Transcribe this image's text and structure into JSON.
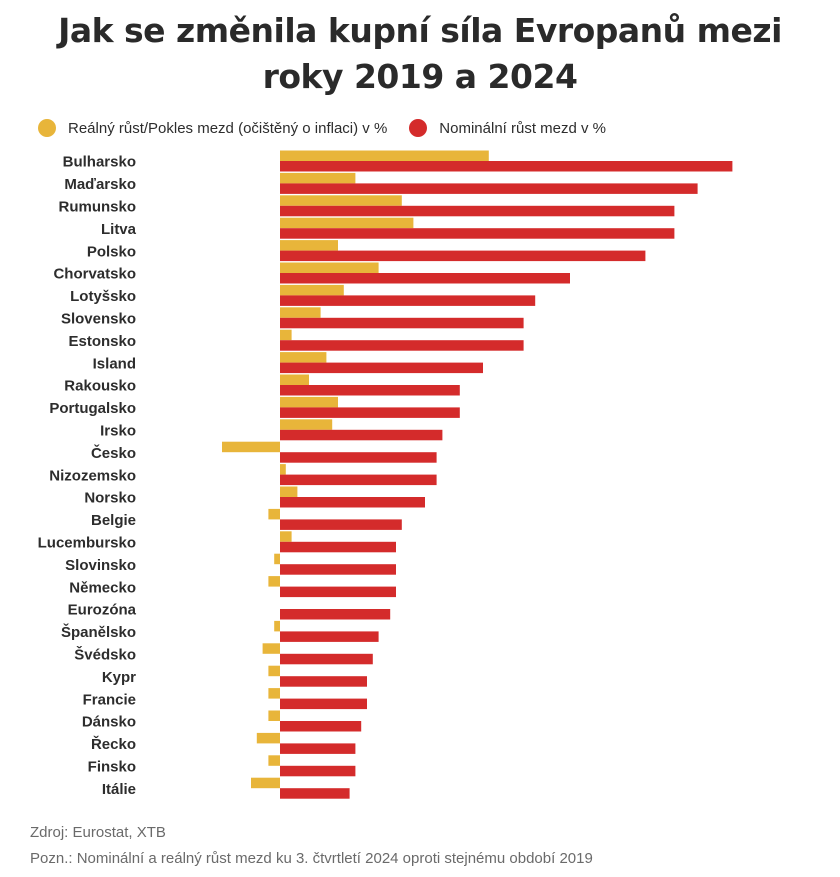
{
  "title_line1": "Jak se změnila kupní síla Evropanů mezi",
  "title_line2": "roky 2019 a 2024",
  "colors": {
    "real": "#e8b53a",
    "nominal": "#d42b2b"
  },
  "footer": {
    "source": "Zdroj: Eurostat, XTB",
    "note": "Pozn.: Nominální a reálný růst mezd ku 3. čtvrtletí 2024 oproti stejnému období 2019"
  },
  "chart_data": {
    "type": "bar",
    "orientation": "horizontal",
    "title": "Jak se změnila kupní síla Evropanů mezi roky 2019 a 2024",
    "legend_position": "top",
    "grid": false,
    "categories": [
      "Bulharsko",
      "Maďarsko",
      "Rumunsko",
      "Litva",
      "Polsko",
      "Chorvatsko",
      "Lotyšsko",
      "Slovensko",
      "Estonsko",
      "Island",
      "Rakousko",
      "Portugalsko",
      "Irsko",
      "Česko",
      "Nizozemsko",
      "Norsko",
      "Belgie",
      "Lucembursko",
      "Slovinsko",
      "Německo",
      "Eurozóna",
      "Španělsko",
      "Švédsko",
      "Kypr",
      "Francie",
      "Dánsko",
      "Řecko",
      "Finsko",
      "Itálie"
    ],
    "series": [
      {
        "name": "Reálný růst/Pokles mezd (očištěný o inflaci) v %",
        "color": "#e8b53a",
        "values": [
          18,
          6.5,
          10.5,
          11.5,
          5,
          8.5,
          5.5,
          3.5,
          1,
          4,
          2.5,
          5,
          4.5,
          -5,
          0.5,
          1.5,
          -1,
          1,
          -0.5,
          -1,
          0,
          -0.5,
          -1.5,
          -1,
          -1,
          -1,
          -2,
          -1,
          -2.5
        ]
      },
      {
        "name": "Nominální růst mezd v %",
        "color": "#d42b2b",
        "values": [
          39,
          36,
          34,
          34,
          31.5,
          25,
          22,
          21,
          21,
          17.5,
          15.5,
          15.5,
          14,
          13.5,
          13.5,
          12.5,
          10.5,
          10,
          10,
          10,
          9.5,
          8.5,
          8,
          7.5,
          7.5,
          7,
          6.5,
          6.5,
          6
        ]
      }
    ]
  }
}
